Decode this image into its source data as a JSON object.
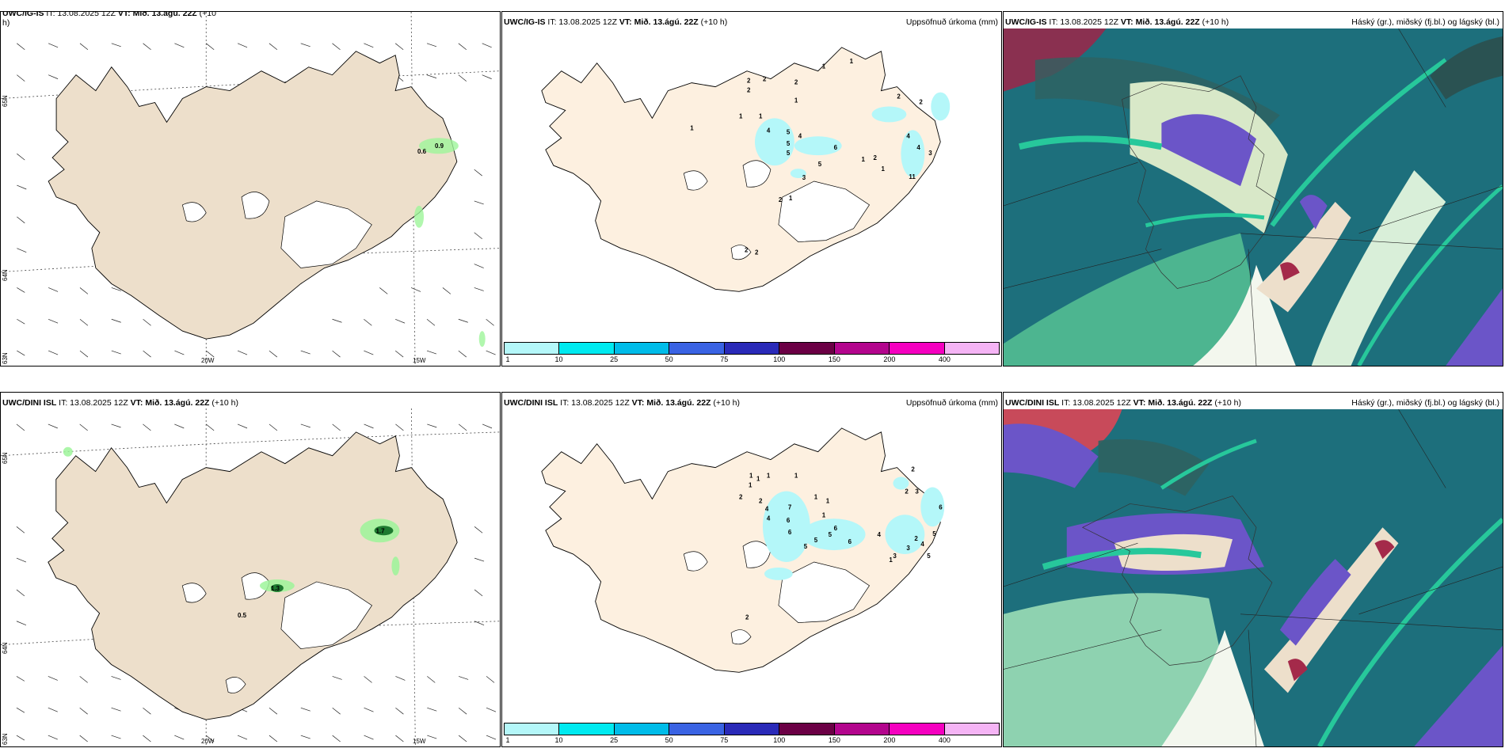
{
  "panels": [
    {
      "id": "wind-ig",
      "header": {
        "model": "UWC/IG-IS",
        "it_label": "IT: 13.08.2025 12Z",
        "vt_label": "VT: Mið. 13.ágú. 22Z",
        "lead": "(+10",
        "lead2": "h)"
      },
      "annotations": [
        "0.6",
        "0.9"
      ],
      "lon_labels": [
        "20W",
        "15W"
      ],
      "lat_labels": [
        "65N",
        "64N",
        "63N"
      ]
    },
    {
      "id": "precip-ig",
      "header": {
        "model": "UWC/IG-IS",
        "it_label": "IT: 13.08.2025 12Z",
        "vt_label": "VT: Mið. 13.ágú. 22Z",
        "lead": "(+10 h)"
      },
      "title_right": "Uppsöfnuð úrkoma (mm)",
      "values": [
        "1",
        "2",
        "2",
        "2",
        "2",
        "1",
        "1",
        "1",
        "1",
        "1",
        "4",
        "5",
        "4",
        "5",
        "5",
        "6",
        "2",
        "2",
        "4",
        "4",
        "3",
        "1",
        "2",
        "1",
        "5",
        "3",
        "11",
        "2",
        "1",
        "2",
        "2"
      ]
    },
    {
      "id": "cloud-ig",
      "header": {
        "model": "UWC/IG-IS",
        "it_label": "IT: 13.08.2025 12Z",
        "vt_label": "VT: Mið. 13.ágú. 22Z",
        "lead": "(+10 h)"
      },
      "title_right": "Háský (gr.), miðský (fj.bl.) og lágský (bl.)"
    },
    {
      "id": "wind-dini",
      "header": {
        "model": "UWC/DINI ISL",
        "it_label": "IT: 13.08.2025 12Z",
        "vt_label": "VT: Mið. 13.ágú. 22Z",
        "lead": "(+10 h)"
      },
      "annotations": [
        "1.7",
        "1.3",
        "0.5"
      ],
      "lon_labels": [
        "20W",
        "15W"
      ],
      "lat_labels": [
        "65N",
        "64N",
        "63N"
      ]
    },
    {
      "id": "precip-dini",
      "header": {
        "model": "UWC/DINI ISL",
        "it_label": "IT: 13.08.2025 12Z",
        "vt_label": "VT: Mið. 13.ágú. 22Z",
        "lead": "(+10 h)"
      },
      "title_right": "Uppsöfnuð úrkoma (mm)",
      "values": [
        "1",
        "1",
        "1",
        "1",
        "1",
        "2",
        "2",
        "7",
        "4",
        "4",
        "6",
        "6",
        "6",
        "1",
        "1",
        "1",
        "5",
        "5",
        "5",
        "6",
        "4",
        "2",
        "3",
        "3",
        "2",
        "2",
        "3",
        "4",
        "5",
        "6",
        "5",
        "1",
        "2"
      ]
    },
    {
      "id": "cloud-dini",
      "header": {
        "model": "UWC/DINI ISL",
        "it_label": "IT: 13.08.2025 12Z",
        "vt_label": "VT: Mið. 13.ágú. 22Z",
        "lead": "(+10 h)"
      },
      "title_right": "Háský (gr.), miðský (fj.bl.) og lágský (bl.)"
    }
  ],
  "colorbar": {
    "ticks": [
      "1",
      "10",
      "25",
      "50",
      "75",
      "100",
      "150",
      "200",
      "400"
    ],
    "colors": [
      "#b4f7f9",
      "#00eaf0",
      "#00bce9",
      "#3a63e3",
      "#2a2ab8",
      "#6b0045",
      "#b3058d",
      "#f500c0",
      "#f5b4f5"
    ]
  },
  "colors": {
    "land": "#eddfcb",
    "land_precip": "#fdf0e0",
    "ocean": "#ffffff",
    "precip_light": "#b4f7f9",
    "cloud_ocean": "#1d6f7c",
    "cloud_teal": "#27c89b",
    "cloud_purple": "#6b55c8",
    "cloud_red": "#a42a4a"
  }
}
